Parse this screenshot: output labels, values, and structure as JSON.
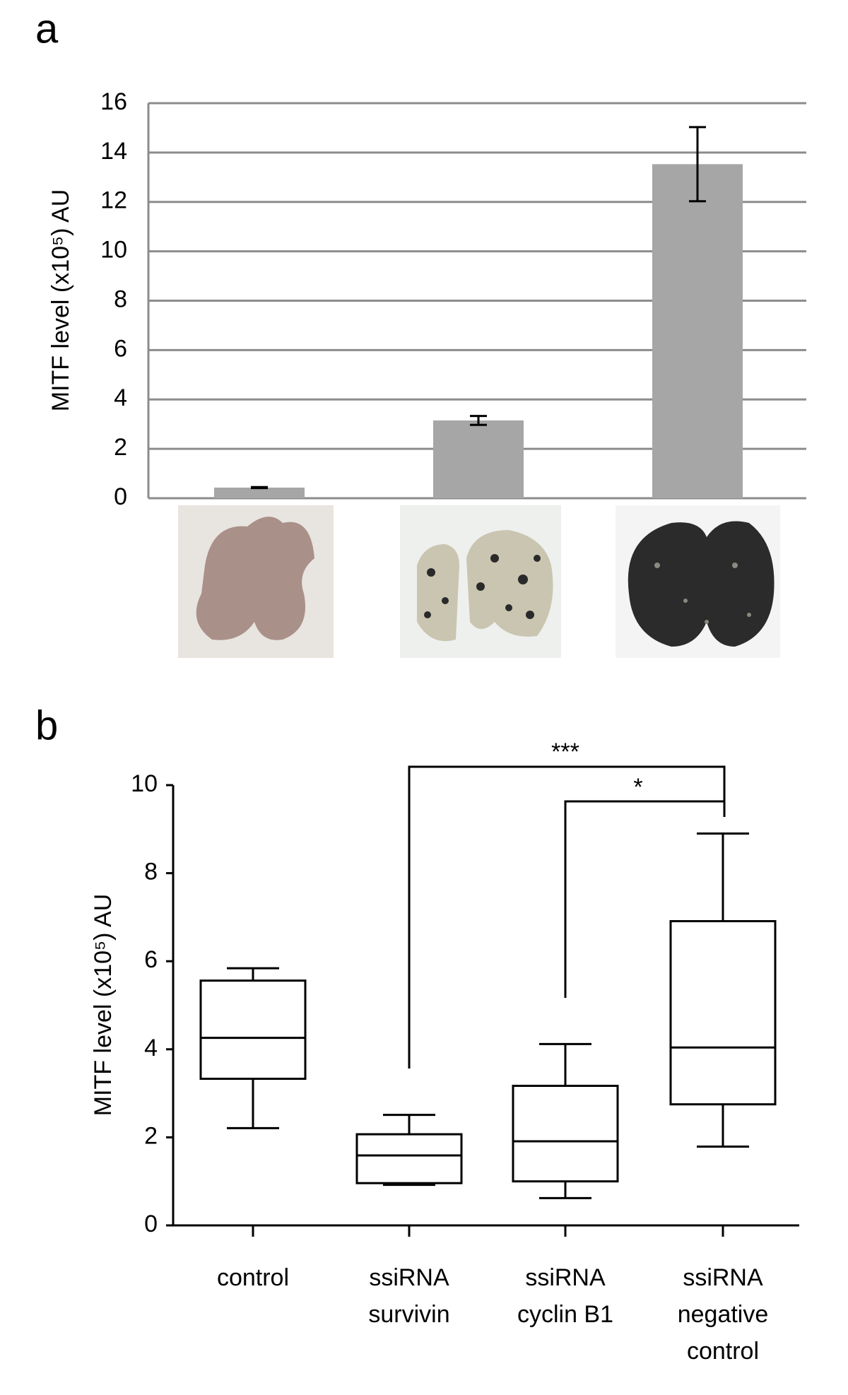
{
  "chart_data": [
    {
      "type": "bar",
      "panel": "a",
      "ylabel": "MITF level (x10⁵) AU",
      "categories": [
        null,
        null,
        null
      ],
      "values": [
        0.43,
        3.15,
        13.53
      ],
      "errors": [
        0.02,
        0.18,
        1.5
      ],
      "color": "#a6a6a6",
      "ylim": [
        0,
        16
      ],
      "yticks": [
        0,
        2,
        4,
        6,
        8,
        10,
        12,
        14,
        16
      ],
      "grid": true
    },
    {
      "type": "box",
      "panel": "b",
      "ylabel": "MITF level (x10⁵) AU",
      "categories": [
        [
          "control"
        ],
        [
          "ssiRNA",
          "survivin"
        ],
        [
          "ssiRNA",
          "cyclin B1"
        ],
        [
          "ssiRNA",
          "negative",
          "control"
        ]
      ],
      "boxes": [
        {
          "min": 2.21,
          "q1": 3.33,
          "median": 4.26,
          "q3": 5.56,
          "max": 5.84
        },
        {
          "min": 0.92,
          "q1": 0.96,
          "median": 1.59,
          "q3": 2.07,
          "max": 2.51
        },
        {
          "min": 0.62,
          "q1": 1.0,
          "median": 1.91,
          "q3": 3.17,
          "max": 4.12
        },
        {
          "min": 1.79,
          "q1": 2.75,
          "median": 4.04,
          "q3": 6.91,
          "max": 8.9
        }
      ],
      "annotations": [
        "***",
        "*"
      ],
      "ylim": [
        0,
        10
      ],
      "yticks": [
        0,
        2,
        4,
        6,
        8,
        10
      ],
      "grid": false
    }
  ]
}
